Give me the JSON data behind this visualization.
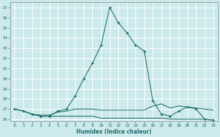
{
  "xlabel": "Humidex (Indice chaleur)",
  "bg_color": "#cce9ec",
  "grid_color": "#ffffff",
  "line_color": "#1a6e6a",
  "xlim": [
    -0.5,
    23.5
  ],
  "ylim": [
    25.8,
    37.5
  ],
  "yticks": [
    26,
    27,
    28,
    29,
    30,
    31,
    32,
    33,
    34,
    35,
    36,
    37
  ],
  "xticks": [
    0,
    1,
    2,
    3,
    4,
    5,
    6,
    7,
    8,
    9,
    10,
    11,
    12,
    13,
    14,
    15,
    16,
    17,
    18,
    19,
    20,
    21,
    22,
    23
  ],
  "series": [
    {
      "x": [
        0,
        1,
        2,
        3,
        4,
        5,
        6,
        7,
        8,
        9,
        10,
        11,
        12,
        13,
        14,
        15,
        16,
        17,
        18,
        19,
        20,
        21,
        22,
        23
      ],
      "y": [
        27.0,
        26.8,
        26.5,
        26.3,
        26.3,
        26.8,
        27.0,
        28.3,
        30.0,
        31.5,
        33.3,
        37.0,
        35.5,
        34.5,
        33.3,
        32.7,
        27.8,
        26.5,
        26.3,
        26.8,
        27.2,
        27.0,
        26.0,
        25.9
      ],
      "marker": true
    },
    {
      "x": [
        0,
        1,
        2,
        3,
        4,
        5,
        6,
        7,
        8,
        9,
        10,
        11,
        12,
        13,
        14,
        15,
        16,
        17,
        18,
        19,
        20,
        21,
        22,
        23
      ],
      "y": [
        27.0,
        26.8,
        26.5,
        26.3,
        26.3,
        26.3,
        26.3,
        26.3,
        26.3,
        26.3,
        26.1,
        26.1,
        26.1,
        26.1,
        26.1,
        26.1,
        26.1,
        26.1,
        26.0,
        26.0,
        26.0,
        26.0,
        26.0,
        25.9
      ],
      "marker": false
    },
    {
      "x": [
        0,
        1,
        2,
        3,
        4,
        5,
        6,
        7,
        8,
        9,
        10,
        11,
        12,
        13,
        14,
        15,
        16,
        17,
        18,
        19,
        20,
        21,
        22,
        23
      ],
      "y": [
        27.0,
        26.8,
        26.5,
        26.4,
        26.4,
        26.7,
        26.8,
        27.0,
        27.0,
        27.0,
        26.9,
        26.9,
        26.9,
        26.9,
        26.9,
        26.9,
        27.3,
        27.5,
        27.1,
        27.3,
        27.2,
        27.1,
        27.0,
        26.9
      ],
      "marker": false
    }
  ]
}
